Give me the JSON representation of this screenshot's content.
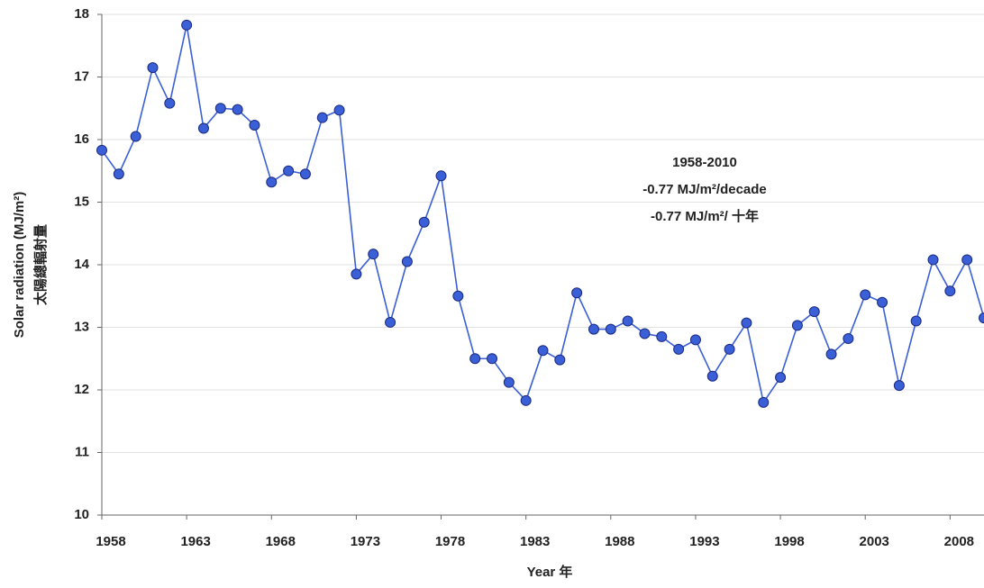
{
  "chart_data": {
    "type": "line",
    "x_label": "Year 年",
    "y_label": "Solar radiation (MJ/m²)",
    "y_label_2": "太陽總輻射量",
    "annotations": [
      "1958-2010",
      "-0.77 MJ/m²/decade",
      "-0.77 MJ/m²/ 十年"
    ],
    "x": [
      1958,
      1959,
      1960,
      1961,
      1962,
      1963,
      1964,
      1965,
      1966,
      1967,
      1968,
      1969,
      1970,
      1971,
      1972,
      1973,
      1974,
      1975,
      1976,
      1977,
      1978,
      1979,
      1980,
      1981,
      1982,
      1983,
      1984,
      1985,
      1986,
      1987,
      1988,
      1989,
      1990,
      1991,
      1992,
      1993,
      1994,
      1995,
      1996,
      1997,
      1998,
      1999,
      2000,
      2001,
      2002,
      2003,
      2004,
      2005,
      2006,
      2007,
      2008,
      2009,
      2010
    ],
    "series": [
      {
        "name": "Solar radiation",
        "color": "#3a5fd6",
        "values": [
          15.83,
          15.45,
          16.05,
          17.15,
          16.58,
          17.83,
          16.18,
          16.5,
          16.48,
          16.23,
          15.32,
          15.5,
          15.45,
          16.35,
          16.47,
          13.85,
          14.17,
          13.08,
          14.05,
          14.68,
          15.42,
          13.5,
          12.5,
          12.5,
          12.12,
          11.83,
          12.63,
          12.48,
          13.55,
          12.97,
          12.97,
          13.1,
          12.9,
          12.85,
          12.65,
          12.8,
          12.22,
          12.65,
          13.07,
          11.8,
          12.2,
          13.03,
          13.25,
          12.57,
          12.82,
          13.52,
          13.4,
          12.07,
          13.1,
          14.08,
          13.58,
          14.08,
          13.15
        ]
      }
    ],
    "xlim": [
      1958,
      2010
    ],
    "xticks": [
      1958,
      1963,
      1968,
      1973,
      1978,
      1983,
      1988,
      1993,
      1998,
      2003,
      2008
    ],
    "ylim": [
      10,
      18
    ],
    "yticks": [
      10,
      11,
      12,
      13,
      14,
      15,
      16,
      17,
      18
    ],
    "grid": true
  }
}
